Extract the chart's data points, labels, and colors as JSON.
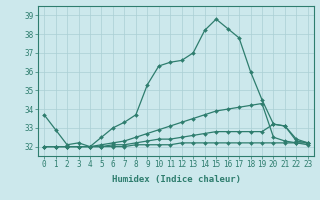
{
  "xlabel": "Humidex (Indice chaleur)",
  "background_color": "#cce8ec",
  "line_color": "#2e7d6e",
  "grid_color": "#aacfd4",
  "xlim": [
    -0.5,
    23.5
  ],
  "ylim": [
    31.5,
    39.5
  ],
  "yticks": [
    32,
    33,
    34,
    35,
    36,
    37,
    38,
    39
  ],
  "xticks": [
    0,
    1,
    2,
    3,
    4,
    5,
    6,
    7,
    8,
    9,
    10,
    11,
    12,
    13,
    14,
    15,
    16,
    17,
    18,
    19,
    20,
    21,
    22,
    23
  ],
  "line1_x": [
    0,
    1,
    2,
    3,
    4,
    5,
    6,
    7,
    8,
    9,
    10,
    11,
    12,
    13,
    14,
    15,
    16,
    17,
    18,
    19,
    20,
    21,
    22,
    23
  ],
  "line1_y": [
    33.7,
    32.9,
    32.1,
    32.2,
    32.0,
    32.5,
    33.0,
    33.3,
    33.7,
    35.3,
    36.3,
    36.5,
    36.6,
    37.0,
    38.2,
    38.8,
    38.3,
    37.8,
    36.0,
    34.5,
    33.2,
    33.1,
    32.4,
    32.2
  ],
  "line2_x": [
    0,
    1,
    2,
    3,
    4,
    5,
    6,
    7,
    8,
    9,
    10,
    11,
    12,
    13,
    14,
    15,
    16,
    17,
    18,
    19,
    20,
    21,
    22,
    23
  ],
  "line2_y": [
    32.0,
    32.0,
    32.0,
    32.0,
    32.0,
    32.1,
    32.2,
    32.3,
    32.5,
    32.7,
    32.9,
    33.1,
    33.3,
    33.5,
    33.7,
    33.9,
    34.0,
    34.1,
    34.2,
    34.3,
    32.5,
    32.3,
    32.2,
    32.1
  ],
  "line3_x": [
    0,
    1,
    2,
    3,
    4,
    5,
    6,
    7,
    8,
    9,
    10,
    11,
    12,
    13,
    14,
    15,
    16,
    17,
    18,
    19,
    20,
    21,
    22,
    23
  ],
  "line3_y": [
    32.0,
    32.0,
    32.0,
    32.0,
    32.0,
    32.0,
    32.1,
    32.1,
    32.2,
    32.3,
    32.4,
    32.4,
    32.5,
    32.6,
    32.7,
    32.8,
    32.8,
    32.8,
    32.8,
    32.8,
    33.2,
    33.1,
    32.3,
    32.2
  ],
  "line4_x": [
    0,
    1,
    2,
    3,
    4,
    5,
    6,
    7,
    8,
    9,
    10,
    11,
    12,
    13,
    14,
    15,
    16,
    17,
    18,
    19,
    20,
    21,
    22,
    23
  ],
  "line4_y": [
    32.0,
    32.0,
    32.0,
    32.0,
    32.0,
    32.0,
    32.0,
    32.0,
    32.1,
    32.1,
    32.1,
    32.1,
    32.2,
    32.2,
    32.2,
    32.2,
    32.2,
    32.2,
    32.2,
    32.2,
    32.2,
    32.2,
    32.2,
    32.2
  ],
  "tick_fontsize": 5.5,
  "xlabel_fontsize": 6.5,
  "marker_size": 2.0,
  "linewidth": 0.9
}
